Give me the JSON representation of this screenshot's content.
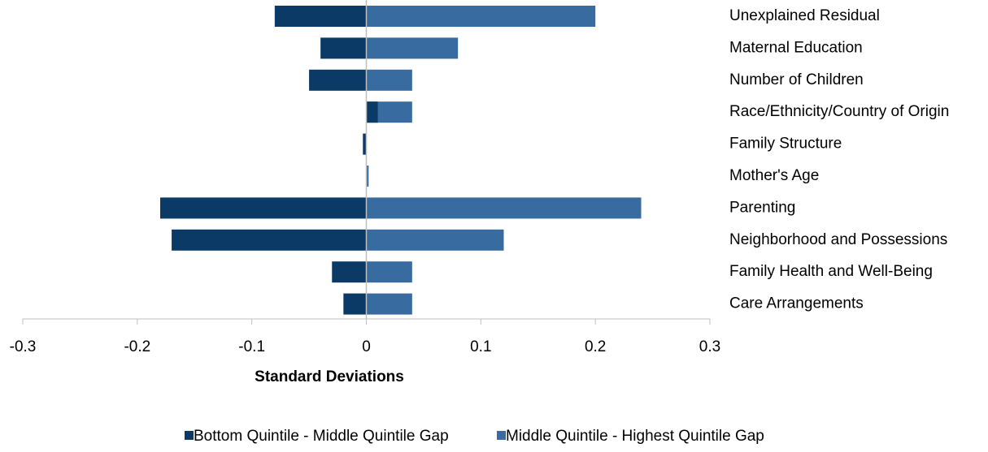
{
  "chart_data": {
    "type": "hbar_overlay",
    "xlabel": "Standard Deviations",
    "categories": [
      "Unexplained Residual",
      "Maternal Education",
      "Number of Children",
      "Race/Ethnicity/Country of Origin",
      "Family Structure",
      "Mother's Age",
      "Parenting",
      "Neighborhood and Possessions",
      "Family Health and Well-Being",
      "Care Arrangements"
    ],
    "series": [
      {
        "name": "Bottom Quintile - Middle Quintile Gap",
        "color": "#0b3a66",
        "values": [
          -0.08,
          -0.04,
          -0.05,
          0.01,
          -0.003,
          0,
          -0.18,
          -0.17,
          -0.03,
          -0.02
        ]
      },
      {
        "name": "Middle Quintile - Highest Quintile Gap",
        "color": "#386ba0",
        "values": [
          0.2,
          0.08,
          0.04,
          0.04,
          0,
          0.002,
          0.24,
          0.12,
          0.04,
          0.04
        ]
      }
    ],
    "xlim": [
      -0.3,
      0.3
    ],
    "xticks": [
      -0.3,
      -0.2,
      -0.1,
      0,
      0.1,
      0.2,
      0.3
    ],
    "legend": "bottom"
  }
}
